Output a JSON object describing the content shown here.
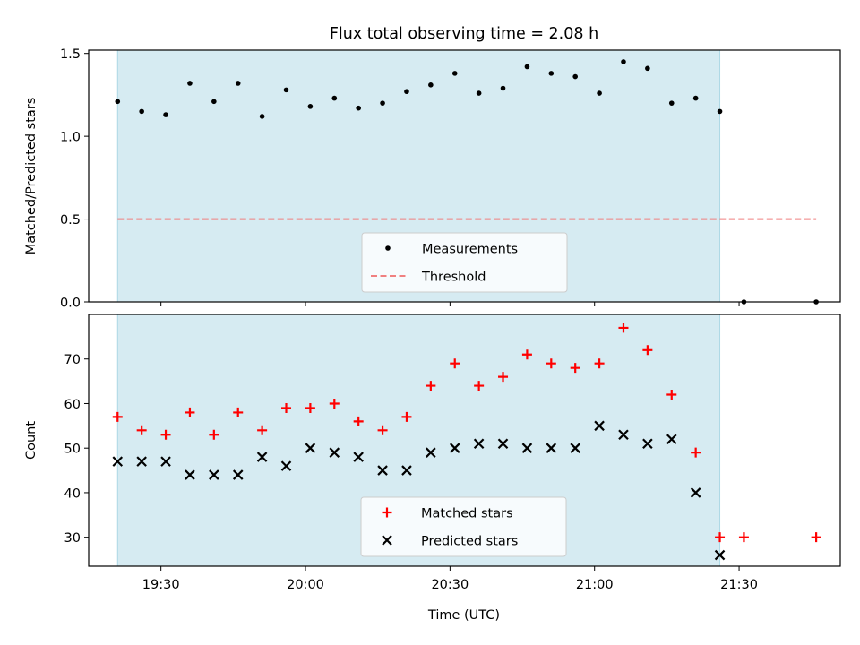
{
  "chart_data": {
    "title": "Flux total observing time = 2.08 h",
    "xlabel": "Time (UTC)",
    "x_ticks": [
      "19:30",
      "20:00",
      "20:30",
      "21:00",
      "21:30"
    ],
    "shaded_span": {
      "start": "19:21",
      "end": "21:26",
      "color": "#add8e6"
    },
    "panels": [
      {
        "type": "scatter",
        "ylabel": "Matched/Predicted stars",
        "ylim": [
          0,
          1.52
        ],
        "y_ticks": [
          "0.0",
          "0.5",
          "1.0",
          "1.5"
        ],
        "legend_position": "lower-center",
        "series": [
          {
            "name": "Measurements",
            "marker": "dot",
            "color": "#000000",
            "x": [
              "19:21",
              "19:26",
              "19:31",
              "19:36",
              "19:41",
              "19:46",
              "19:51",
              "19:56",
              "20:01",
              "20:06",
              "20:11",
              "20:16",
              "20:21",
              "20:26",
              "20:31",
              "20:36",
              "20:41",
              "20:46",
              "20:51",
              "20:56",
              "21:01",
              "21:06",
              "21:11",
              "21:16",
              "21:21",
              "21:26",
              "21:31",
              "21:46"
            ],
            "y": [
              1.21,
              1.15,
              1.13,
              1.32,
              1.21,
              1.32,
              1.12,
              1.28,
              1.18,
              1.23,
              1.17,
              1.2,
              1.27,
              1.31,
              1.38,
              1.26,
              1.29,
              1.42,
              1.38,
              1.36,
              1.26,
              1.45,
              1.41,
              1.2,
              1.23,
              1.15,
              0.0,
              0.0
            ]
          },
          {
            "name": "Threshold",
            "style": "dashed-line",
            "color": "#f08080",
            "x": [
              "19:21",
              "21:46"
            ],
            "y": [
              0.5,
              0.5
            ]
          }
        ]
      },
      {
        "type": "scatter",
        "ylabel": "Count",
        "ylim": [
          23.5,
          80
        ],
        "y_ticks": [
          "30",
          "40",
          "50",
          "60",
          "70"
        ],
        "legend_position": "lower-center",
        "series": [
          {
            "name": "Matched stars",
            "marker": "plus",
            "color": "#ff0000",
            "x": [
              "19:21",
              "19:26",
              "19:31",
              "19:36",
              "19:41",
              "19:46",
              "19:51",
              "19:56",
              "20:01",
              "20:06",
              "20:11",
              "20:16",
              "20:21",
              "20:26",
              "20:31",
              "20:36",
              "20:41",
              "20:46",
              "20:51",
              "20:56",
              "21:01",
              "21:06",
              "21:11",
              "21:16",
              "21:21",
              "21:26",
              "21:31",
              "21:46"
            ],
            "y": [
              57,
              54,
              53,
              58,
              53,
              58,
              54,
              59,
              59,
              60,
              56,
              54,
              57,
              64,
              69,
              64,
              66,
              71,
              69,
              68,
              69,
              77,
              72,
              62,
              49,
              30,
              30,
              30
            ]
          },
          {
            "name": "Predicted stars",
            "marker": "x",
            "color": "#000000",
            "x": [
              "19:21",
              "19:26",
              "19:31",
              "19:36",
              "19:41",
              "19:46",
              "19:51",
              "19:56",
              "20:01",
              "20:06",
              "20:11",
              "20:16",
              "20:21",
              "20:26",
              "20:31",
              "20:36",
              "20:41",
              "20:46",
              "20:51",
              "20:56",
              "21:01",
              "21:06",
              "21:11",
              "21:16",
              "21:21",
              "21:26"
            ],
            "y": [
              47,
              47,
              47,
              44,
              44,
              44,
              48,
              46,
              50,
              49,
              48,
              45,
              45,
              49,
              50,
              51,
              51,
              50,
              50,
              50,
              55,
              53,
              51,
              52,
              40,
              26
            ]
          }
        ]
      }
    ]
  }
}
